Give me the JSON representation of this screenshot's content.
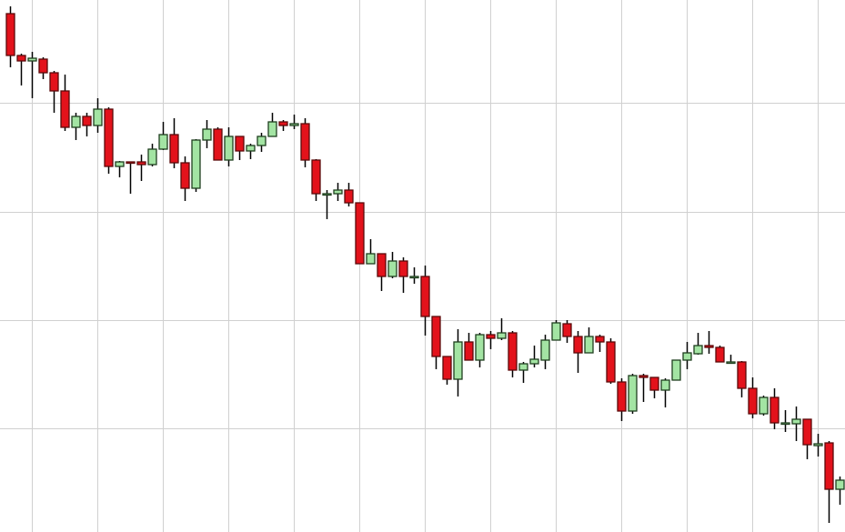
{
  "chart_data": {
    "type": "candlestick",
    "title": "",
    "xlabel": "",
    "ylabel": "",
    "ylim": [
      1.5,
      60
    ],
    "grid": true,
    "gridlines_y": [
      12.9,
      24.8,
      36.7,
      48.7
    ],
    "gridline_every_n_candles": 6,
    "gridline_first_candle": 2,
    "colors": {
      "up_fill": "#a3e4a3",
      "up_border": "#1f3f1f",
      "down_fill": "#e3121b",
      "down_border": "#5a0a0a",
      "wick": "#000000",
      "grid": "#d0d0d0",
      "background": "#ffffff"
    },
    "ohlc": [
      [
        58.5,
        59.3,
        52.6,
        53.9
      ],
      [
        53.9,
        54.1,
        50.6,
        53.3
      ],
      [
        53.3,
        54.3,
        49.2,
        53.6
      ],
      [
        53.5,
        53.7,
        51.3,
        52.0
      ],
      [
        52.0,
        52.2,
        47.6,
        50.0
      ],
      [
        50.0,
        51.8,
        45.6,
        46.0
      ],
      [
        46.0,
        47.6,
        44.6,
        47.2
      ],
      [
        47.2,
        47.6,
        45.0,
        46.2
      ],
      [
        46.2,
        49.2,
        45.4,
        48.0
      ],
      [
        48.0,
        48.2,
        40.9,
        41.7
      ],
      [
        41.7,
        42.3,
        40.5,
        42.2
      ],
      [
        42.2,
        42.2,
        38.7,
        42.1
      ],
      [
        42.2,
        43.0,
        40.1,
        41.9
      ],
      [
        41.9,
        44.2,
        41.7,
        43.6
      ],
      [
        43.6,
        46.6,
        43.5,
        45.2
      ],
      [
        45.2,
        47.0,
        41.5,
        42.1
      ],
      [
        42.1,
        42.8,
        37.9,
        39.3
      ],
      [
        39.3,
        44.7,
        38.9,
        44.6
      ],
      [
        44.6,
        46.8,
        43.7,
        45.8
      ],
      [
        45.8,
        46.0,
        42.4,
        42.4
      ],
      [
        42.4,
        46.0,
        41.7,
        45.0
      ],
      [
        45.0,
        45.0,
        42.4,
        43.4
      ],
      [
        43.4,
        44.2,
        42.5,
        44.0
      ],
      [
        44.0,
        45.4,
        43.3,
        45.0
      ],
      [
        45.0,
        47.6,
        45.0,
        46.6
      ],
      [
        46.6,
        46.8,
        45.6,
        46.2
      ],
      [
        46.2,
        47.4,
        45.8,
        46.4
      ],
      [
        46.4,
        47.0,
        41.6,
        42.4
      ],
      [
        42.4,
        42.5,
        37.9,
        38.7
      ],
      [
        38.7,
        39.1,
        35.9,
        38.7
      ],
      [
        38.7,
        39.9,
        37.9,
        39.1
      ],
      [
        39.1,
        39.9,
        37.3,
        37.7
      ],
      [
        37.7,
        37.7,
        31.0,
        31.0
      ],
      [
        31.0,
        33.7,
        31.0,
        32.1
      ],
      [
        32.1,
        32.1,
        28.0,
        29.6
      ],
      [
        29.6,
        32.3,
        29.4,
        31.3
      ],
      [
        31.3,
        31.7,
        27.8,
        29.6
      ],
      [
        29.6,
        30.6,
        28.8,
        29.6
      ],
      [
        29.6,
        30.8,
        23.1,
        25.2
      ],
      [
        25.2,
        25.2,
        19.4,
        20.8
      ],
      [
        20.8,
        20.8,
        17.7,
        18.3
      ],
      [
        18.3,
        23.8,
        16.4,
        22.4
      ],
      [
        22.4,
        23.4,
        20.4,
        20.4
      ],
      [
        20.4,
        23.4,
        19.6,
        23.2
      ],
      [
        23.2,
        23.6,
        21.6,
        22.8
      ],
      [
        22.8,
        25.0,
        22.6,
        23.4
      ],
      [
        23.4,
        23.6,
        18.5,
        19.3
      ],
      [
        19.3,
        20.2,
        17.9,
        20.0
      ],
      [
        20.0,
        22.0,
        19.6,
        20.5
      ],
      [
        20.4,
        23.2,
        19.4,
        22.6
      ],
      [
        22.6,
        24.8,
        22.6,
        24.5
      ],
      [
        24.4,
        24.8,
        22.3,
        23.0
      ],
      [
        23.0,
        23.6,
        19.0,
        21.2
      ],
      [
        21.2,
        24.0,
        21.2,
        23.0
      ],
      [
        23.0,
        23.2,
        21.3,
        22.4
      ],
      [
        22.4,
        22.8,
        17.8,
        18.0
      ],
      [
        18.0,
        18.4,
        13.7,
        14.8
      ],
      [
        14.8,
        18.9,
        14.5,
        18.7
      ],
      [
        18.7,
        18.9,
        15.8,
        18.5
      ],
      [
        18.5,
        18.5,
        16.2,
        17.1
      ],
      [
        17.1,
        18.4,
        15.2,
        18.2
      ],
      [
        18.2,
        20.4,
        18.2,
        20.4
      ],
      [
        20.4,
        22.4,
        19.4,
        21.2
      ],
      [
        21.1,
        23.4,
        21.0,
        22.0
      ],
      [
        22.0,
        23.6,
        21.1,
        21.8
      ],
      [
        21.8,
        22.0,
        20.2,
        20.2
      ],
      [
        20.2,
        21.0,
        20.0,
        20.2
      ],
      [
        20.2,
        20.3,
        16.3,
        17.3
      ],
      [
        17.3,
        18.5,
        14.0,
        14.5
      ],
      [
        14.5,
        16.5,
        14.3,
        16.3
      ],
      [
        16.3,
        17.3,
        12.8,
        13.5
      ],
      [
        13.5,
        14.9,
        12.5,
        13.5
      ],
      [
        13.4,
        15.3,
        11.5,
        13.9
      ],
      [
        13.9,
        13.9,
        9.5,
        11.1
      ],
      [
        11.0,
        12.3,
        9.8,
        11.2
      ],
      [
        11.3,
        11.5,
        2.5,
        6.2
      ],
      [
        6.2,
        7.6,
        4.5,
        7.2
      ]
    ]
  }
}
